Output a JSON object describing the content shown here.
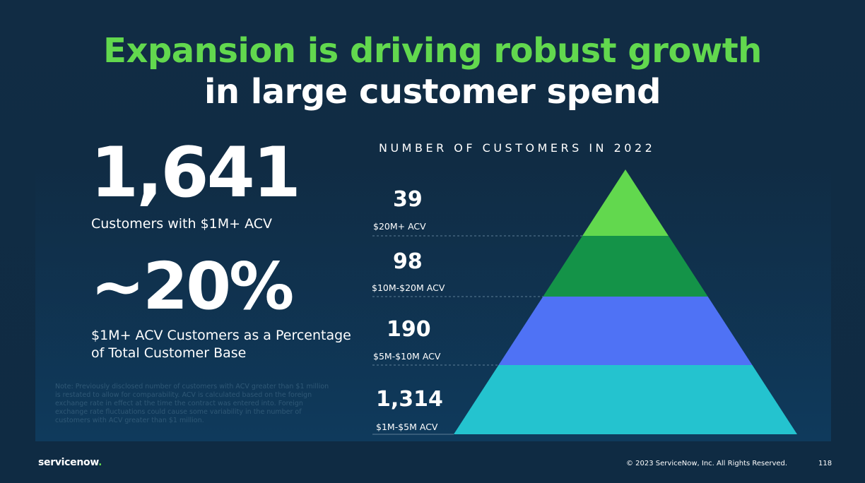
{
  "title": {
    "line1": "Expansion is driving robust growth",
    "line2": "in large customer spend"
  },
  "stats": {
    "customers_value": "1,641",
    "customers_label": "Customers with $1M+ ACV",
    "percent_value": "~20%",
    "percent_label": "$1M+ ACV Customers as a Percentage of Total Customer Base"
  },
  "note": "Note: Previously disclosed number of customers with ACV greater than $1 million is restated to allow for comparability. ACV is calculated based on the foreign exchange rate in effect at the time the contract was entered into. Foreign exchange rate fluctuations could cause some variability in the number of customers with ACV greater than $1 million.",
  "chart_data": {
    "type": "pyramid",
    "title": "NUMBER OF CUSTOMERS IN 2022",
    "tiers": [
      {
        "value": "39",
        "label": "$20M+ ACV",
        "color": "#62d84e"
      },
      {
        "value": "98",
        "label": "$10M-$20M ACV",
        "color": "#149348"
      },
      {
        "value": "190",
        "label": "$5M-$10M ACV",
        "color": "#4f72f5"
      },
      {
        "value": "1,314",
        "label": "$1M-$5M ACV",
        "color": "#24c3cf"
      }
    ]
  },
  "footer": {
    "logo_text": "servicenow",
    "logo_dot": ".",
    "copyright": "© 2023 ServiceNow, Inc. All Rights Reserved.",
    "page_number": "118"
  },
  "colors": {
    "background": "#0f2b43",
    "accent_green": "#62d84e"
  }
}
